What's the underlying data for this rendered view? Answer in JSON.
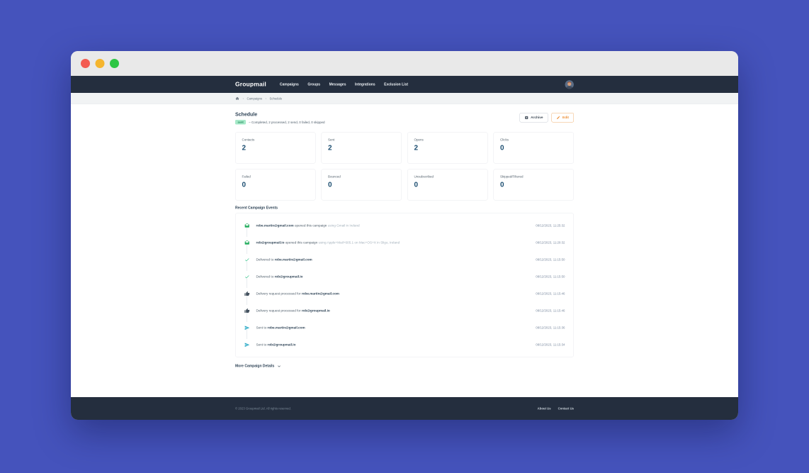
{
  "colors": {
    "desktop_background": "#4553BC",
    "navbar_background": "#242E3E",
    "accent_orange": "#EE8F35",
    "badge_green_background": "#A6E9C8",
    "badge_green_text": "#168253",
    "stat_value_navy": "#1B4D70",
    "icon_envelope_green": "#27AE60",
    "icon_check_teal": "#3DC48F",
    "icon_thumb_dark": "#44525F",
    "icon_send_teal": "#2BAAC6"
  },
  "window_controls": {
    "close": "close-button",
    "minimize": "minimize-button",
    "maximize": "maximize-button"
  },
  "navbar": {
    "logo": "Groupmail",
    "items": [
      "Campaigns",
      "Groups",
      "Messages",
      "Integrations",
      "Exclusion List"
    ],
    "avatar": "user-avatar"
  },
  "breadcrumb": {
    "home_icon": "home-icon",
    "items": [
      "Campaigns",
      "Schedule"
    ]
  },
  "page": {
    "title": "Schedule",
    "status_badge": "sent",
    "status_text": "– Completed, 2 processed, 2 send, 0 failed, 0 skipped",
    "archive_label": "Archive",
    "edit_label": "Edit"
  },
  "stats": [
    {
      "label": "Contacts",
      "value": "2"
    },
    {
      "label": "Sent",
      "value": "2"
    },
    {
      "label": "Opens",
      "value": "2"
    },
    {
      "label": "Clicks",
      "value": "0"
    },
    {
      "label": "Failed",
      "value": "0"
    },
    {
      "label": "Bounced",
      "value": "0"
    },
    {
      "label": "Unsubscribed",
      "value": "0"
    },
    {
      "label": "Skipped/Filtered",
      "value": "0"
    }
  ],
  "events_section": {
    "heading": "Recent Campaign Events",
    "more_label": "More Campaign Details",
    "events": [
      {
        "icon": "envelope-open-icon",
        "prefix": "",
        "bold": "robe.martin@gmail.com",
        "mid": " opened this campaign ",
        "muted": "using Gmail in Ireland",
        "timestamp": "08/12/2023, 11:25:32"
      },
      {
        "icon": "envelope-open-icon",
        "prefix": "",
        "bold": "rob@groupmail.io",
        "mid": " opened this campaign ",
        "muted": "using Apple+Mail+605.1 on Mac+OS+X in Sligo, Ireland",
        "timestamp": "08/12/2023, 11:20:32"
      },
      {
        "icon": "check-icon",
        "prefix": "Delivered to ",
        "bold": "robe.martin@gmail.com",
        "mid": "",
        "muted": "",
        "timestamp": "08/12/2023, 11:15:50"
      },
      {
        "icon": "check-icon",
        "prefix": "Delivered to ",
        "bold": "rob@groupmail.io",
        "mid": "",
        "muted": "",
        "timestamp": "08/12/2023, 11:15:50"
      },
      {
        "icon": "thumbs-up-icon",
        "prefix": "Delivery request processed for ",
        "bold": "robe.martin@gmail.com",
        "mid": "",
        "muted": "",
        "timestamp": "08/12/2023, 11:15:46"
      },
      {
        "icon": "thumbs-up-icon",
        "prefix": "Delivery request processed for ",
        "bold": "rob@groupmail.io",
        "mid": "",
        "muted": "",
        "timestamp": "08/12/2023, 11:15:46"
      },
      {
        "icon": "send-icon",
        "prefix": "Sent to ",
        "bold": "robe.martin@gmail.com",
        "mid": "",
        "muted": "",
        "timestamp": "08/12/2023, 11:15:36"
      },
      {
        "icon": "send-icon",
        "prefix": "Sent to ",
        "bold": "rob@groupmail.io",
        "mid": "",
        "muted": "",
        "timestamp": "08/12/2023, 11:15:34"
      }
    ]
  },
  "footer": {
    "copyright": "© 2023 Groupmail Ltd. All rights reserved.",
    "links": [
      "About Us",
      "Contact Us"
    ]
  }
}
